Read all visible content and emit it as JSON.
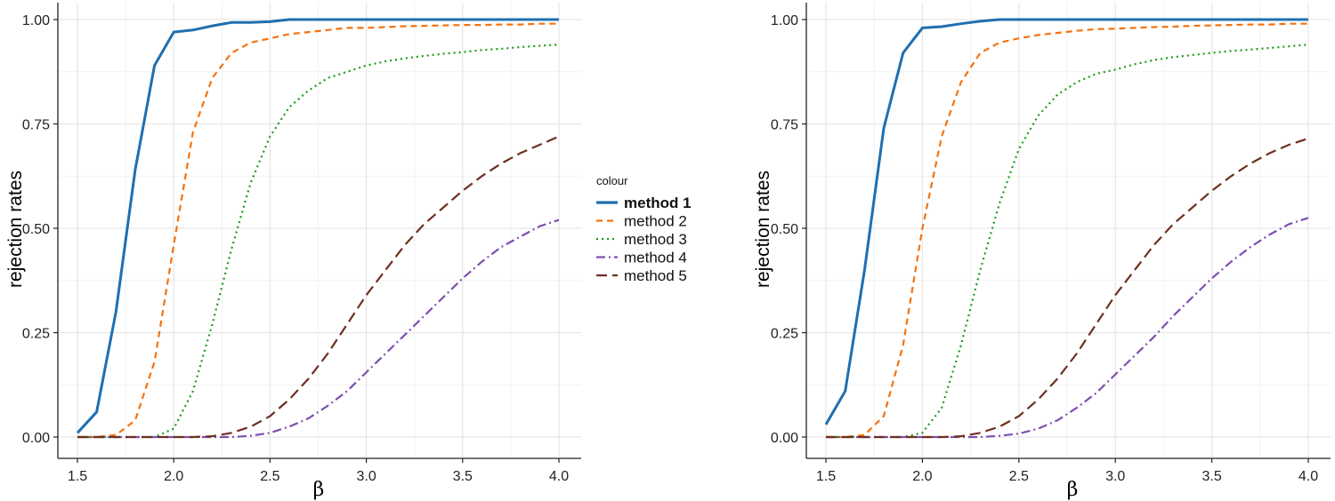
{
  "chart_data": [
    {
      "type": "line",
      "title": "",
      "xlabel": "β",
      "ylabel": "rejection rates",
      "xlim": [
        1.5,
        4.0
      ],
      "ylim": [
        0,
        1
      ],
      "grid": true,
      "x_ticks": [
        "1.5",
        "2.0",
        "2.5",
        "3.0",
        "3.5",
        "4.0"
      ],
      "y_ticks": [
        "0.00",
        "0.25",
        "0.50",
        "0.75",
        "1.00"
      ],
      "x": [
        1.5,
        1.6,
        1.7,
        1.8,
        1.9,
        2.0,
        2.1,
        2.2,
        2.3,
        2.4,
        2.5,
        2.6,
        2.7,
        2.8,
        2.9,
        3.0,
        3.1,
        3.2,
        3.3,
        3.4,
        3.5,
        3.6,
        3.7,
        3.8,
        3.9,
        4.0
      ],
      "series": [
        {
          "name": "method 1",
          "values": [
            0.01,
            0.06,
            0.3,
            0.64,
            0.89,
            0.97,
            0.975,
            0.985,
            0.993,
            0.993,
            0.995,
            1.0,
            1.0,
            1.0,
            1.0,
            1.0,
            1.0,
            1.0,
            1.0,
            1.0,
            1.0,
            1.0,
            1.0,
            1.0,
            1.0,
            1.0
          ]
        },
        {
          "name": "method 2",
          "values": [
            0.0,
            0.0,
            0.005,
            0.04,
            0.18,
            0.46,
            0.73,
            0.86,
            0.92,
            0.945,
            0.955,
            0.965,
            0.97,
            0.975,
            0.98,
            0.98,
            0.982,
            0.984,
            0.985,
            0.986,
            0.987,
            0.987,
            0.988,
            0.988,
            0.99,
            0.99
          ]
        },
        {
          "name": "method 3",
          "values": [
            0.0,
            0.0,
            0.0,
            0.0,
            0.0,
            0.02,
            0.11,
            0.27,
            0.45,
            0.61,
            0.72,
            0.79,
            0.83,
            0.86,
            0.875,
            0.89,
            0.9,
            0.907,
            0.913,
            0.918,
            0.922,
            0.927,
            0.93,
            0.934,
            0.937,
            0.94
          ]
        },
        {
          "name": "method 4",
          "values": [
            0.0,
            0.0,
            0.0,
            0.0,
            0.0,
            0.0,
            0.0,
            0.0,
            0.0,
            0.003,
            0.01,
            0.025,
            0.045,
            0.075,
            0.11,
            0.155,
            0.2,
            0.245,
            0.29,
            0.335,
            0.38,
            0.42,
            0.455,
            0.48,
            0.505,
            0.52
          ]
        },
        {
          "name": "method 5",
          "values": [
            0.0,
            0.0,
            0.0,
            0.0,
            0.0,
            0.0,
            0.0,
            0.002,
            0.01,
            0.025,
            0.05,
            0.09,
            0.14,
            0.2,
            0.27,
            0.34,
            0.4,
            0.46,
            0.51,
            0.55,
            0.59,
            0.625,
            0.655,
            0.68,
            0.7,
            0.72
          ]
        }
      ]
    },
    {
      "type": "line",
      "title": "",
      "xlabel": "β",
      "ylabel": "rejection rates",
      "xlim": [
        1.5,
        4.0
      ],
      "ylim": [
        0,
        1
      ],
      "grid": true,
      "x_ticks": [
        "1.5",
        "2.0",
        "2.5",
        "3.0",
        "3.5",
        "4.0"
      ],
      "y_ticks": [
        "0.00",
        "0.25",
        "0.50",
        "0.75",
        "1.00"
      ],
      "x": [
        1.5,
        1.6,
        1.7,
        1.8,
        1.9,
        2.0,
        2.1,
        2.2,
        2.3,
        2.4,
        2.5,
        2.6,
        2.7,
        2.8,
        2.9,
        3.0,
        3.1,
        3.2,
        3.3,
        3.4,
        3.5,
        3.6,
        3.7,
        3.8,
        3.9,
        4.0
      ],
      "series": [
        {
          "name": "method 1",
          "values": [
            0.03,
            0.11,
            0.4,
            0.74,
            0.92,
            0.98,
            0.983,
            0.99,
            0.996,
            1.0,
            1.0,
            1.0,
            1.0,
            1.0,
            1.0,
            1.0,
            1.0,
            1.0,
            1.0,
            1.0,
            1.0,
            1.0,
            1.0,
            1.0,
            1.0,
            1.0
          ]
        },
        {
          "name": "method 2",
          "values": [
            0.0,
            0.0,
            0.005,
            0.05,
            0.22,
            0.5,
            0.72,
            0.85,
            0.92,
            0.945,
            0.955,
            0.963,
            0.968,
            0.973,
            0.977,
            0.978,
            0.98,
            0.982,
            0.983,
            0.985,
            0.986,
            0.987,
            0.988,
            0.988,
            0.99,
            0.99
          ]
        },
        {
          "name": "method 3",
          "values": [
            0.0,
            0.0,
            0.0,
            0.0,
            0.0,
            0.01,
            0.07,
            0.22,
            0.4,
            0.56,
            0.69,
            0.77,
            0.82,
            0.85,
            0.87,
            0.88,
            0.893,
            0.903,
            0.91,
            0.915,
            0.92,
            0.925,
            0.928,
            0.932,
            0.936,
            0.94
          ]
        },
        {
          "name": "method 4",
          "values": [
            0.0,
            0.0,
            0.0,
            0.0,
            0.0,
            0.0,
            0.0,
            0.0,
            0.0,
            0.003,
            0.008,
            0.02,
            0.04,
            0.07,
            0.105,
            0.15,
            0.195,
            0.24,
            0.29,
            0.335,
            0.38,
            0.42,
            0.455,
            0.485,
            0.51,
            0.525
          ]
        },
        {
          "name": "method 5",
          "values": [
            0.0,
            0.0,
            0.0,
            0.0,
            0.0,
            0.0,
            0.0,
            0.002,
            0.01,
            0.025,
            0.05,
            0.09,
            0.14,
            0.2,
            0.27,
            0.34,
            0.4,
            0.46,
            0.51,
            0.55,
            0.59,
            0.625,
            0.655,
            0.68,
            0.7,
            0.715
          ]
        }
      ]
    }
  ],
  "legend": {
    "title": "colour",
    "items": [
      {
        "label": "method 1",
        "color": "#1f6fb0",
        "style": "solid",
        "bold": true
      },
      {
        "label": "method 2",
        "color": "#f5720f",
        "style": "dashed",
        "bold": false
      },
      {
        "label": "method 3",
        "color": "#1a9a1a",
        "style": "dotted",
        "bold": false
      },
      {
        "label": "method 4",
        "color": "#7e4fb0",
        "style": "dotdash",
        "bold": false
      },
      {
        "label": "method 5",
        "color": "#6e2f20",
        "style": "longdash",
        "bold": false
      }
    ]
  }
}
